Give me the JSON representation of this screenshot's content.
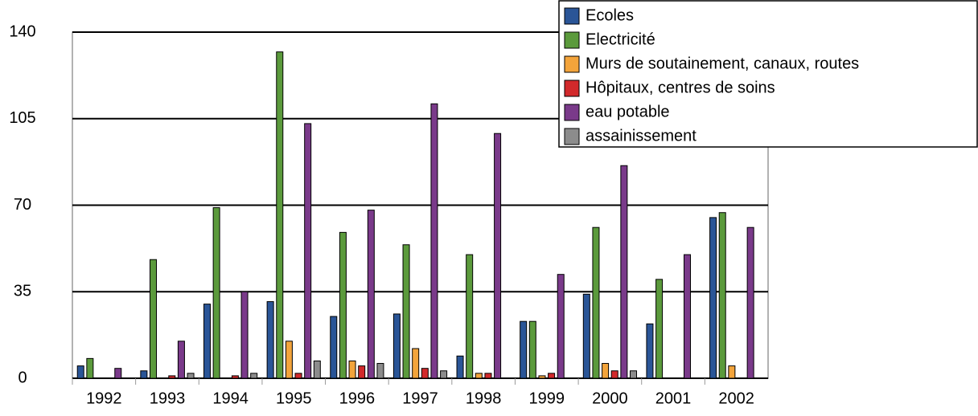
{
  "chart_data": {
    "type": "bar",
    "categories": [
      "1992",
      "1993",
      "1994",
      "1995",
      "1996",
      "1997",
      "1998",
      "1999",
      "2000",
      "2001",
      "2002"
    ],
    "series": [
      {
        "name": "Ecoles",
        "color": "#2a5597",
        "values": [
          5,
          3,
          30,
          31,
          25,
          26,
          9,
          23,
          34,
          22,
          65
        ]
      },
      {
        "name": "Electricité",
        "color": "#5b9a3c",
        "values": [
          8,
          48,
          69,
          132,
          59,
          54,
          50,
          23,
          61,
          40,
          67
        ]
      },
      {
        "name": "Murs de soutainement, canaux, routes",
        "color": "#f3a43b",
        "values": [
          0,
          0,
          0,
          15,
          7,
          12,
          2,
          1,
          6,
          0,
          5
        ]
      },
      {
        "name": "Hôpitaux, centres de soins",
        "color": "#d2292b",
        "values": [
          0,
          1,
          1,
          2,
          5,
          4,
          2,
          2,
          3,
          0,
          0
        ]
      },
      {
        "name": "eau potable",
        "color": "#7a3a8a",
        "values": [
          4,
          15,
          35,
          103,
          68,
          111,
          99,
          42,
          86,
          50,
          61
        ]
      },
      {
        "name": "assainissement",
        "color": "#8c8c8c",
        "values": [
          0,
          2,
          2,
          7,
          6,
          3,
          0,
          0,
          3,
          0,
          0
        ]
      }
    ],
    "ylim": [
      0,
      140
    ],
    "yticks": [
      0,
      35,
      70,
      105,
      140
    ],
    "grid": true
  }
}
